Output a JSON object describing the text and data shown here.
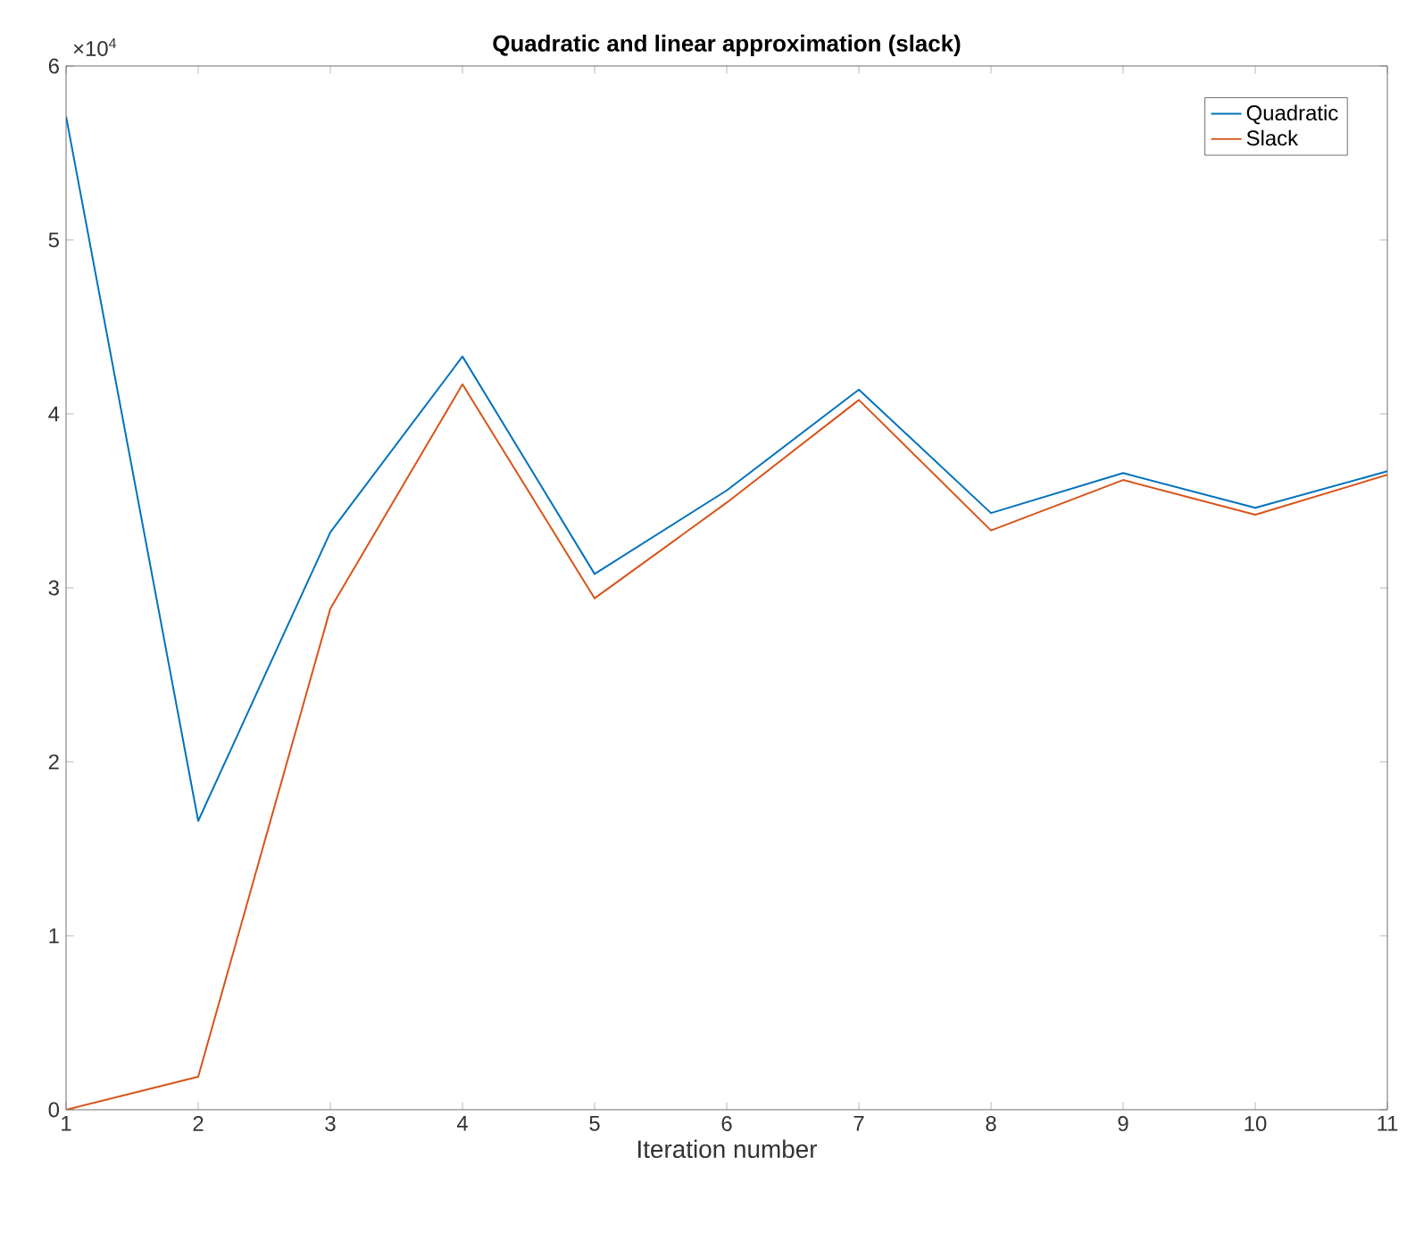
{
  "chart_data": {
    "type": "line",
    "title": "Quadratic and linear approximation (slack)",
    "xlabel": "Iteration number",
    "x": [
      1,
      2,
      3,
      4,
      5,
      6,
      7,
      8,
      9,
      10,
      11
    ],
    "series": [
      {
        "name": "Quadratic",
        "color": "#0072bd",
        "values": [
          5.71,
          1.66,
          3.32,
          4.33,
          3.08,
          3.56,
          4.14,
          3.43,
          3.66,
          3.46,
          3.67
        ]
      },
      {
        "name": "Slack",
        "color": "#d95319",
        "values": [
          0.0,
          0.19,
          2.88,
          4.17,
          2.94,
          3.49,
          4.08,
          3.33,
          3.62,
          3.42,
          3.65
        ]
      }
    ],
    "xlim": [
      1,
      11
    ],
    "ylim": [
      0,
      6
    ],
    "xticks": [
      1,
      2,
      3,
      4,
      5,
      6,
      7,
      8,
      9,
      10,
      11
    ],
    "yticks": [
      0,
      1,
      2,
      3,
      4,
      5,
      6
    ],
    "annotations": [
      "×10$^{4}$"
    ],
    "legend": "top right",
    "grid": false,
    "marker": "none",
    "line_style": "solid"
  }
}
